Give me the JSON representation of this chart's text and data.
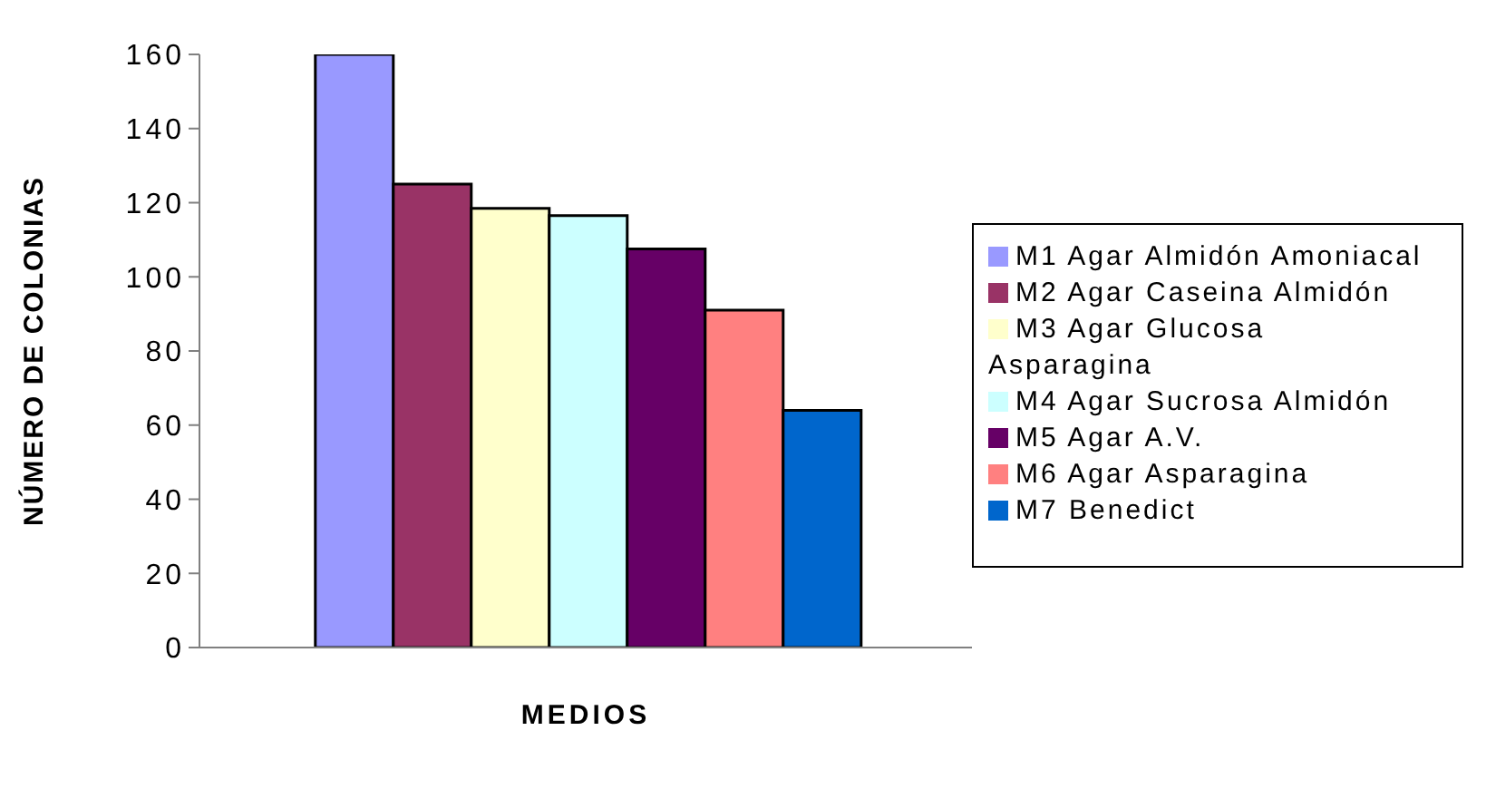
{
  "chart_data": {
    "type": "bar",
    "xlabel": "MEDIOS",
    "ylabel": "NÚMERO DE COLONIAS",
    "categories": [
      null
    ],
    "series": [
      {
        "name": "M1 Agar Almidón Amoniacal",
        "color": "#9999ff",
        "values": [
          160
        ]
      },
      {
        "name": "M2 Agar Caseina Almidón",
        "color": "#993366",
        "values": [
          125
        ]
      },
      {
        "name": "M3 Agar Glucosa Asparagina",
        "color": "#ffffcc",
        "values": [
          118.5
        ]
      },
      {
        "name": "M4 Agar Sucrosa Almidón",
        "color": "#ccffff",
        "values": [
          116.5
        ]
      },
      {
        "name": "M5 Agar A.V.",
        "color": "#660066",
        "values": [
          107.5
        ]
      },
      {
        "name": "M6 Agar Asparagina",
        "color": "#ff8080",
        "values": [
          91
        ]
      },
      {
        "name": "M7 Benedict",
        "color": "#0066cc",
        "values": [
          64
        ]
      }
    ],
    "ylim": [
      0,
      160
    ],
    "yticks": [
      0,
      20,
      40,
      60,
      80,
      100,
      120,
      140,
      160
    ],
    "grid": false,
    "legend": "right"
  }
}
